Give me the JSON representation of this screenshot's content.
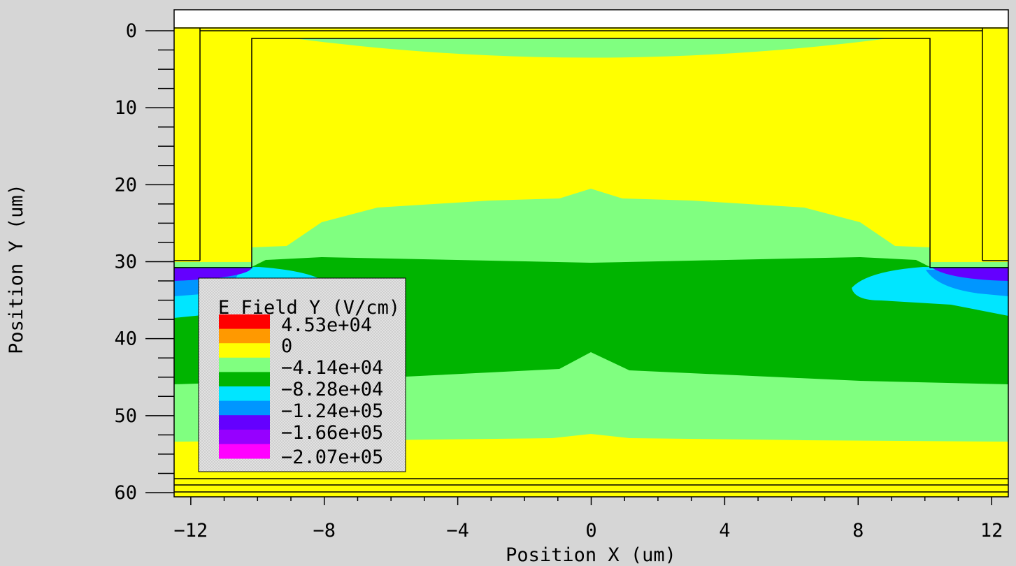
{
  "chart_data": {
    "type": "heatmap",
    "xlabel": "Position X (um)",
    "ylabel": "Position Y (um)",
    "xlim": [
      -12.5,
      12.5
    ],
    "ylim": [
      60,
      -2.8
    ],
    "x_ticks": [
      -12,
      -8,
      -4,
      0,
      4,
      8,
      12
    ],
    "y_ticks": [
      0,
      10,
      20,
      30,
      40,
      50,
      60
    ],
    "legend": {
      "title": "E Field Y (V/cm)",
      "placement": "left-inside",
      "entries": [
        {
          "label": "4.53e+04",
          "color": "#ff0000"
        },
        {
          "label": "0",
          "color": "#ff9900"
        },
        {
          "label": "",
          "color": "#ffff00"
        },
        {
          "label": "-4.14e+04",
          "color": "#80ff80"
        },
        {
          "label": "",
          "color": "#00b400"
        },
        {
          "label": "-8.28e+04",
          "color": "#00e6ff"
        },
        {
          "label": "-1.24e+05",
          "color": "#0096ff"
        },
        {
          "label": "-1.66e+05",
          "color": "#6400ff"
        },
        {
          "label": "",
          "color": "#9600ff"
        },
        {
          "label": "-2.07e+05",
          "color": "#ff00ff"
        }
      ]
    }
  },
  "colors": {
    "background": "#d6d6d6",
    "yellow": "#ffff00",
    "light_green": "#80ff80",
    "green": "#00b400",
    "cyan": "#00e6ff",
    "blue": "#0096ff",
    "violet": "#6400ff",
    "purple": "#9600ff"
  }
}
